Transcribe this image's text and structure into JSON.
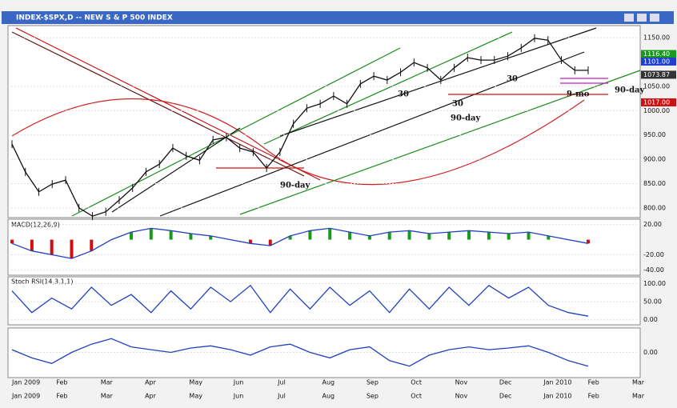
{
  "window": {
    "title": "INDEX-$SPX,D -- NEW S & P 500 INDEX"
  },
  "price_panel": {
    "ylim": [
      780,
      1170
    ],
    "yticks": [
      {
        "value": 800,
        "label": "800.00"
      },
      {
        "value": 850,
        "label": "850.00"
      },
      {
        "value": 900,
        "label": "900.00"
      },
      {
        "value": 950,
        "label": "950.00"
      },
      {
        "value": 1000,
        "label": "1000.00"
      },
      {
        "value": 1050,
        "label": "1050.00"
      },
      {
        "value": 1150,
        "label": "1150.00"
      }
    ],
    "tags": [
      {
        "value": 1116.4,
        "label": "1116.40",
        "color": "#1a9a1a"
      },
      {
        "value": 1101,
        "label": "1101.00",
        "color": "#1f3fd0"
      },
      {
        "value": 1073.87,
        "label": "1073.87",
        "color": "#333333"
      },
      {
        "value": 1017,
        "label": "1017.00",
        "color": "#d01010"
      }
    ],
    "close": [
      931,
      874,
      833,
      849,
      857,
      800,
      783,
      792,
      816,
      841,
      874,
      890,
      923,
      907,
      898,
      940,
      945,
      923,
      915,
      882,
      915,
      973,
      1005,
      1014,
      1030,
      1014,
      1055,
      1071,
      1063,
      1079,
      1099,
      1088,
      1063,
      1088,
      1109,
      1104,
      1104,
      1112,
      1129,
      1149,
      1145,
      1104,
      1083,
      1083
    ],
    "annotations": [
      "90-day",
      "90-day",
      "90-day",
      "30",
      "30",
      "30",
      "9-mo"
    ]
  },
  "macd_panel": {
    "title": "MACD(12,26,9)",
    "ylim": [
      -45,
      25
    ],
    "yticks": [
      {
        "value": 20,
        "label": "20.00"
      },
      {
        "value": -20,
        "label": "-20.00"
      },
      {
        "value": -40,
        "label": "-40.00"
      }
    ],
    "values": [
      -5,
      -15,
      -20,
      -25,
      -15,
      0,
      10,
      15,
      12,
      8,
      5,
      0,
      -5,
      -8,
      5,
      12,
      15,
      10,
      5,
      10,
      12,
      8,
      10,
      12,
      10,
      8,
      10,
      5,
      0,
      -5
    ]
  },
  "stoch_panel": {
    "title": "Stoch RSI(14,3,1,1)",
    "ylim": [
      -5,
      110
    ],
    "yticks": [
      {
        "value": 100,
        "label": "100.00"
      },
      {
        "value": 50,
        "label": "50.00"
      },
      {
        "value": 0,
        "label": "0.00"
      }
    ],
    "values": [
      80,
      20,
      60,
      30,
      90,
      40,
      70,
      20,
      80,
      30,
      90,
      50,
      95,
      20,
      85,
      30,
      90,
      40,
      80,
      20,
      85,
      30,
      90,
      40,
      95,
      60,
      90,
      40,
      20,
      10
    ]
  },
  "osc_panel": {
    "ylim": [
      -40,
      40
    ],
    "yticks": [
      {
        "value": 0,
        "label": "0.00"
      }
    ],
    "values": [
      5,
      -10,
      -20,
      0,
      15,
      25,
      10,
      5,
      0,
      8,
      12,
      5,
      -5,
      10,
      15,
      0,
      -10,
      5,
      10,
      -15,
      -25,
      -5,
      5,
      10,
      5,
      8,
      12,
      0,
      -15,
      -25
    ]
  },
  "months": [
    "Jan 2009",
    "Feb",
    "Mar",
    "Apr",
    "May",
    "Jun",
    "Jul",
    "Aug",
    "Sep",
    "Oct",
    "Nov",
    "Dec",
    "Jan 2010",
    "Feb",
    "Mar"
  ]
}
